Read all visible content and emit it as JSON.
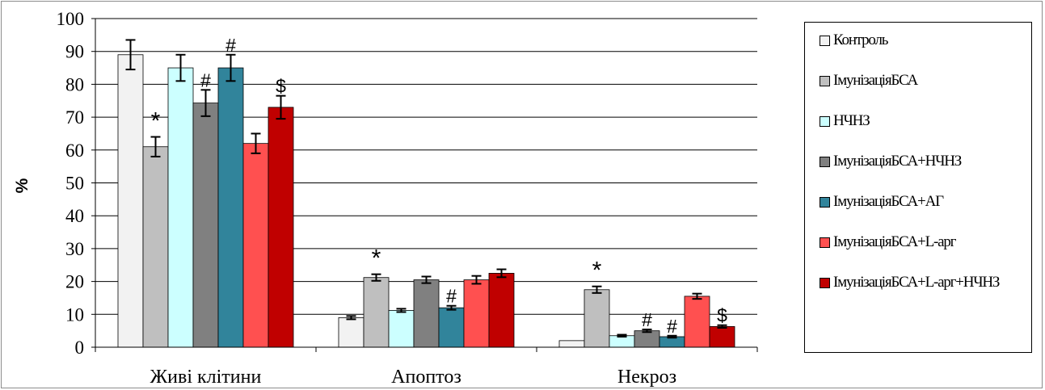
{
  "chart_data": {
    "type": "bar",
    "ylabel": "%",
    "xlabel": "",
    "ylim": [
      0,
      100
    ],
    "yticks": [
      0,
      10,
      20,
      30,
      40,
      50,
      60,
      70,
      80,
      90,
      100
    ],
    "grid": true,
    "legend_position": "right",
    "categories": [
      "Живі клітини",
      "Апоптоз",
      "Некроз"
    ],
    "series": [
      {
        "name": "Контроль",
        "color": "#f2f2f2",
        "values": [
          89,
          9,
          2
        ],
        "errors": [
          4.5,
          0.5,
          0
        ]
      },
      {
        "name": "ІмунізаціяБСА",
        "color": "#bfbfbf",
        "values": [
          61,
          21.2,
          17.5
        ],
        "errors": [
          3,
          1,
          1
        ]
      },
      {
        "name": "НЧНЗ",
        "color": "#ccffff",
        "values": [
          85,
          11.2,
          3.5
        ],
        "errors": [
          4,
          0.5,
          0.3
        ]
      },
      {
        "name": "ІмунізаціяБСА+НЧНЗ",
        "color": "#808080",
        "values": [
          74.3,
          20.5,
          5
        ],
        "errors": [
          4,
          1,
          0.4
        ]
      },
      {
        "name": "ІмунізаціяБСА+АГ",
        "color": "#31849b",
        "values": [
          85,
          12,
          3.2
        ],
        "errors": [
          4,
          0.6,
          0.3
        ]
      },
      {
        "name": "ІмунізаціяБСА+L-арг",
        "color": "#ff5050",
        "values": [
          62,
          20.5,
          15.5
        ],
        "errors": [
          3,
          1.2,
          0.8
        ]
      },
      {
        "name": "ІмунізаціяБСА+L-арг+НЧНЗ",
        "color": "#c00000",
        "values": [
          73,
          22.5,
          6.3
        ],
        "errors": [
          3.5,
          1.2,
          0.4
        ]
      }
    ],
    "annotations": [
      {
        "category": 0,
        "series": 1,
        "text": "*"
      },
      {
        "category": 0,
        "series": 3,
        "text": "#"
      },
      {
        "category": 0,
        "series": 4,
        "text": "#"
      },
      {
        "category": 0,
        "series": 6,
        "text": "$"
      },
      {
        "category": 1,
        "series": 1,
        "text": "*"
      },
      {
        "category": 1,
        "series": 4,
        "text": "#"
      },
      {
        "category": 2,
        "series": 1,
        "text": "*"
      },
      {
        "category": 2,
        "series": 3,
        "text": "#"
      },
      {
        "category": 2,
        "series": 4,
        "text": "#"
      },
      {
        "category": 2,
        "series": 6,
        "text": "$"
      }
    ]
  }
}
